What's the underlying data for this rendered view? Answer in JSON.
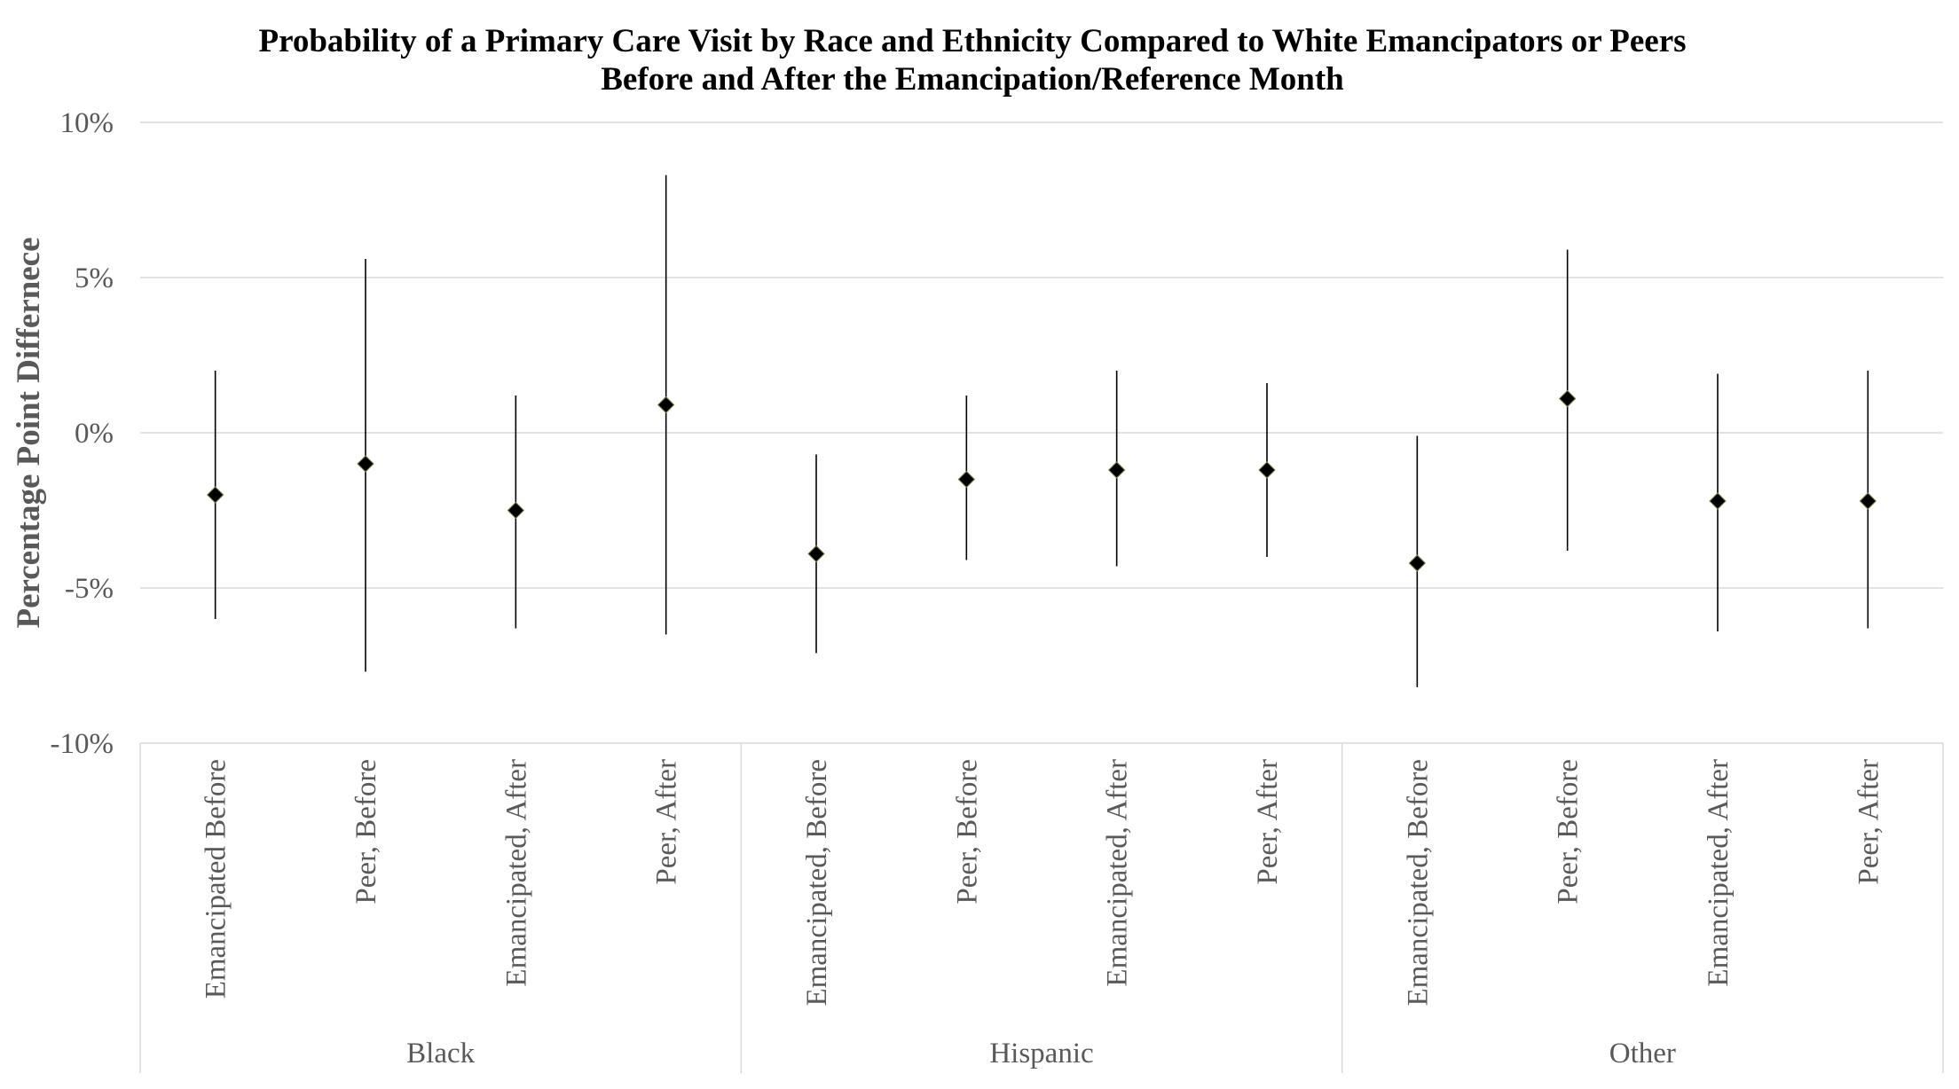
{
  "chart_data": {
    "type": "scatter",
    "title": [
      "Probability of a Primary Care Visit by Race and Ethnicity Compared to White Emancipators or Peers",
      "Before and After the Emancipation/Reference Month"
    ],
    "ylabel": "Percentage Point Differnece",
    "xlabel": "",
    "ylim": [
      -10,
      10
    ],
    "y_ticks": [
      10,
      5,
      0,
      -5,
      -10
    ],
    "y_tick_labels": [
      "10%",
      "5%",
      "0%",
      "-5%",
      "-10%"
    ],
    "grid": true,
    "marker": "diamond",
    "marker_color": "#000000",
    "error_bar_color": "#000000",
    "groups": [
      {
        "name": "Black",
        "points": [
          {
            "category": "Emancipated Before",
            "estimate": -2.0,
            "ci_low": -6.0,
            "ci_high": 2.0
          },
          {
            "category": "Peer, Before",
            "estimate": -1.0,
            "ci_low": -7.7,
            "ci_high": 5.6
          },
          {
            "category": "Emancipated, After",
            "estimate": -2.5,
            "ci_low": -6.3,
            "ci_high": 1.2
          },
          {
            "category": "Peer, After",
            "estimate": 0.9,
            "ci_low": -6.5,
            "ci_high": 8.3
          }
        ]
      },
      {
        "name": "Hispanic",
        "points": [
          {
            "category": "Emancipated, Before",
            "estimate": -3.9,
            "ci_low": -7.1,
            "ci_high": -0.7
          },
          {
            "category": "Peer, Before",
            "estimate": -1.5,
            "ci_low": -4.1,
            "ci_high": 1.2
          },
          {
            "category": "Emancipated, After",
            "estimate": -1.2,
            "ci_low": -4.3,
            "ci_high": 2.0
          },
          {
            "category": "Peer, After",
            "estimate": -1.2,
            "ci_low": -4.0,
            "ci_high": 1.6
          }
        ]
      },
      {
        "name": "Other",
        "points": [
          {
            "category": "Emancipated, Before",
            "estimate": -4.2,
            "ci_low": -8.2,
            "ci_high": -0.1
          },
          {
            "category": "Peer, Before",
            "estimate": 1.1,
            "ci_low": -3.8,
            "ci_high": 5.9
          },
          {
            "category": "Emancipated, After",
            "estimate": -2.2,
            "ci_low": -6.4,
            "ci_high": 1.9
          },
          {
            "category": "Peer, After",
            "estimate": -2.2,
            "ci_low": -6.3,
            "ci_high": 2.0
          }
        ]
      }
    ]
  }
}
